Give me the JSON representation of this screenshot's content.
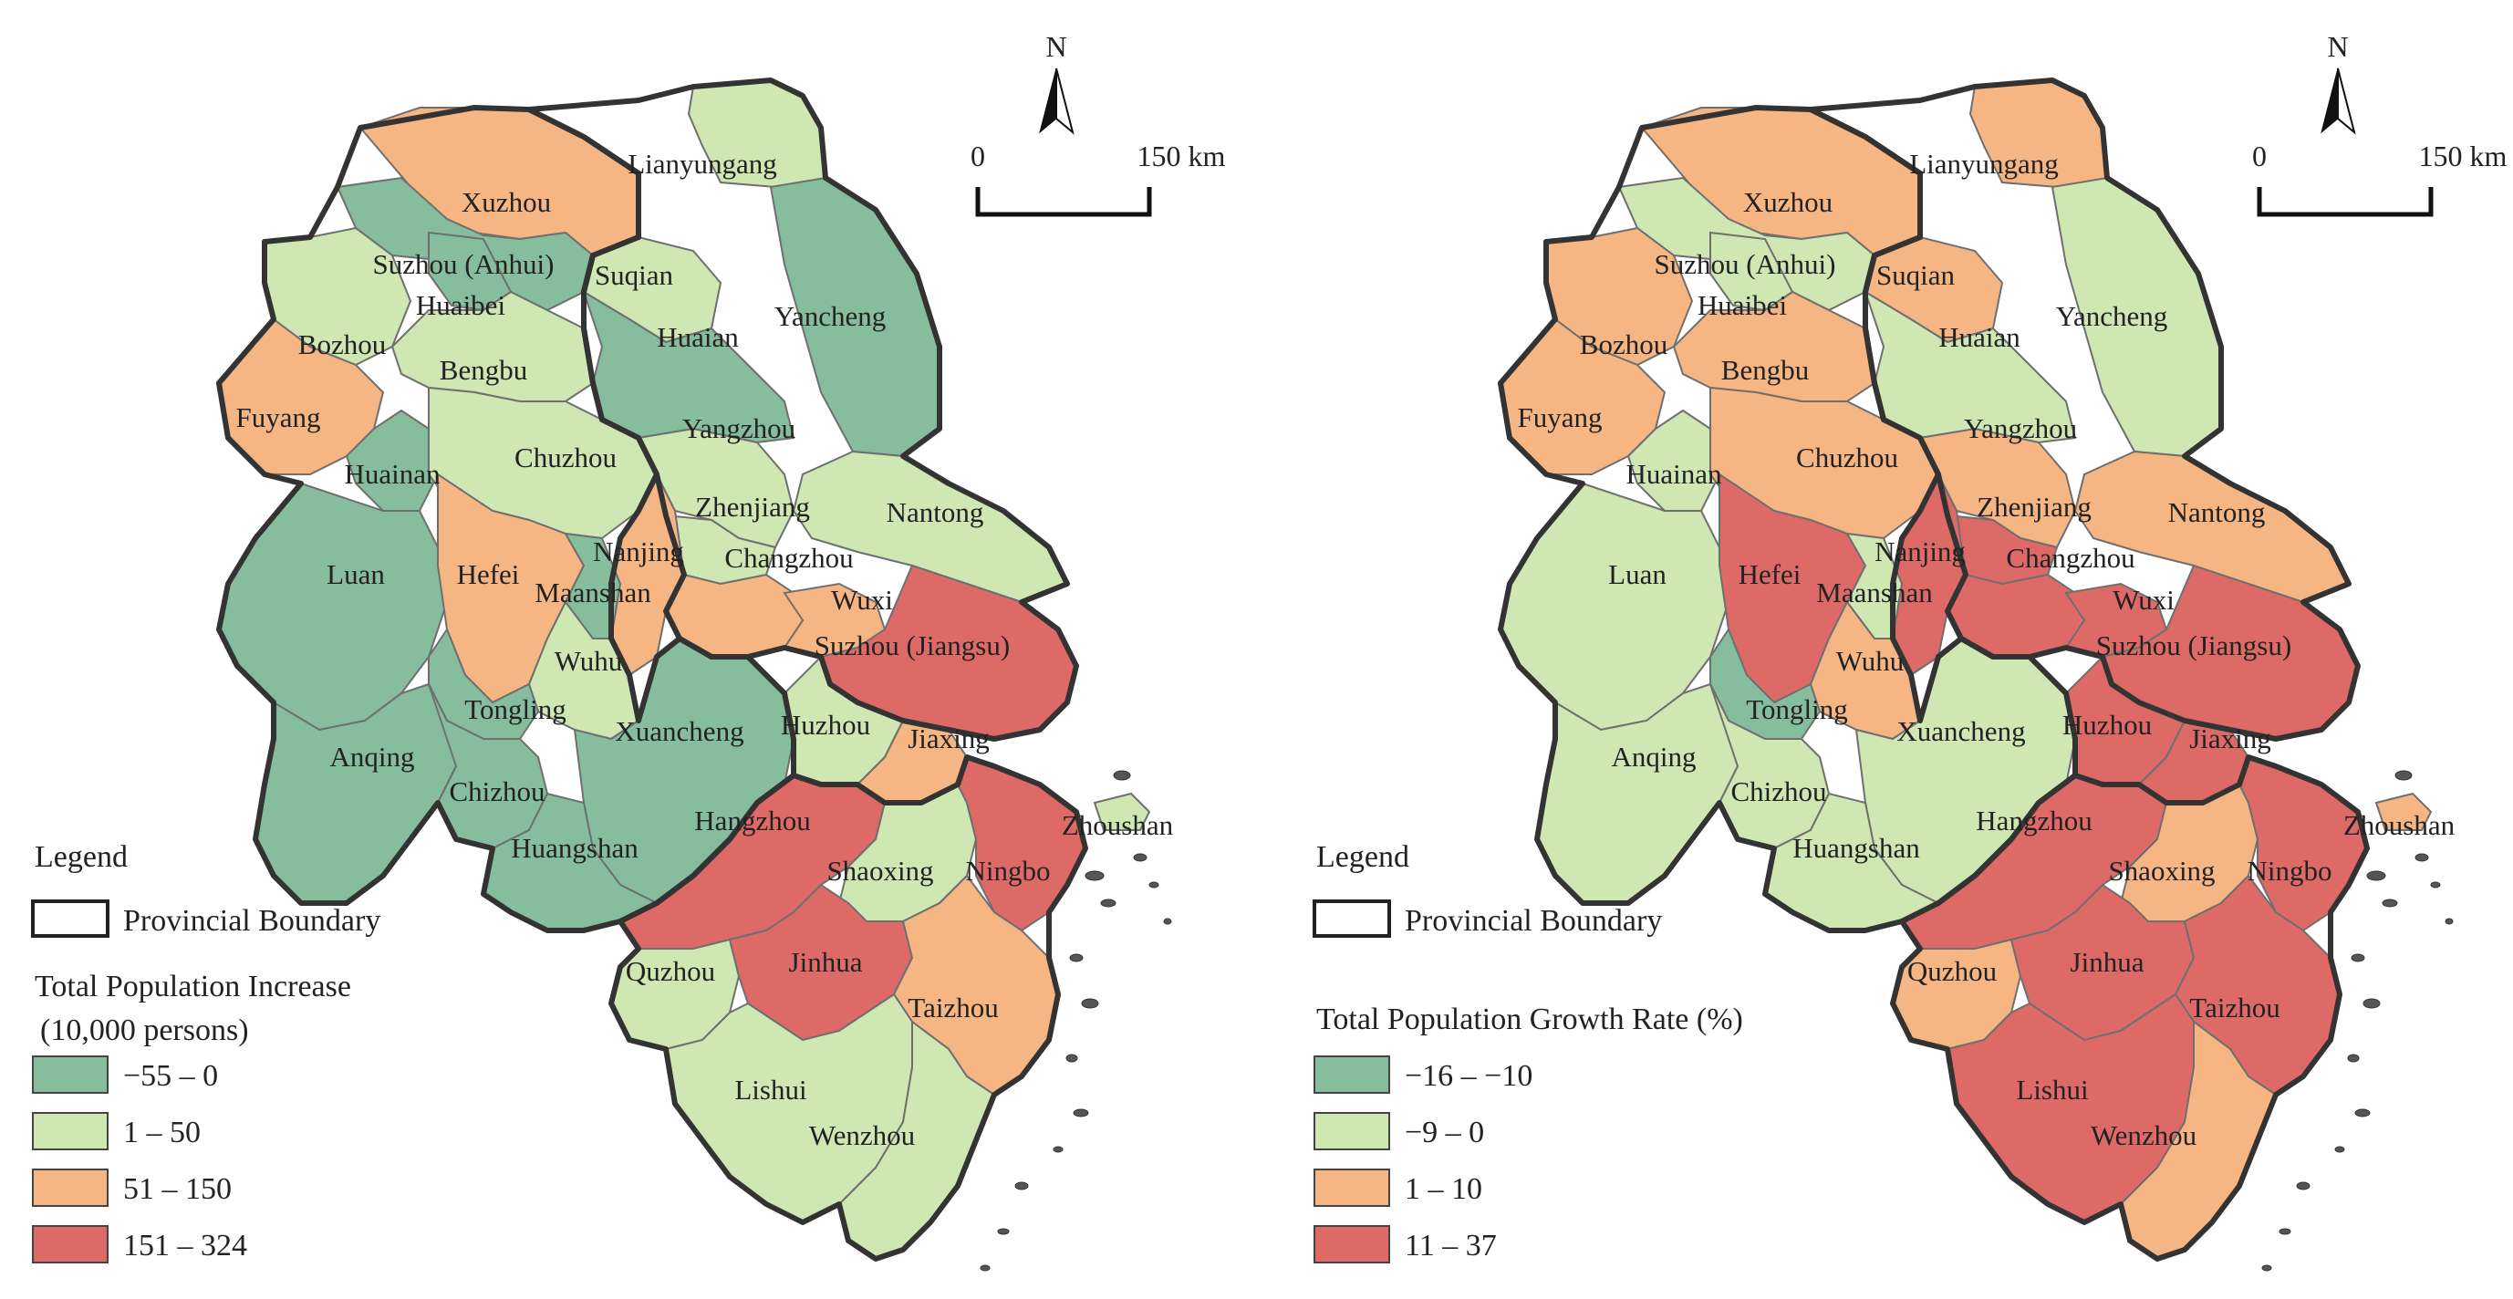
{
  "colors": {
    "class1": "#86bd9d",
    "class2": "#cfe7b3",
    "class3": "#f6b683",
    "class4": "#dd6a67"
  },
  "north_arrow": {
    "label": "N"
  },
  "maps": [
    {
      "id": "left",
      "legend": {
        "heading": "Legend",
        "boundary_label": "Provincial Boundary",
        "title_line1": "Total Population Increase",
        "title_line2": "(10,000 persons)",
        "classes": [
          "−55 – 0",
          "1 – 50",
          "51 – 150",
          "151 – 324"
        ]
      },
      "scale": {
        "zero": "0",
        "end": "150 km"
      }
    },
    {
      "id": "right",
      "legend": {
        "heading": "Legend",
        "boundary_label": "Provincial Boundary",
        "title_line1": "Total Population Growth Rate (%)",
        "title_line2": "",
        "classes": [
          "−16 – −10",
          "−9 – 0",
          "1 – 10",
          "11 – 37"
        ]
      },
      "scale": {
        "zero": "0",
        "end": "150 km"
      }
    }
  ],
  "cities": [
    {
      "name": "Lianyungang",
      "left_class": 2,
      "right_class": 3
    },
    {
      "name": "Xuzhou",
      "left_class": 3,
      "right_class": 3
    },
    {
      "name": "Suzhou (Anhui)",
      "left_class": 1,
      "right_class": 2
    },
    {
      "name": "Huaibei",
      "left_class": 1,
      "right_class": 2
    },
    {
      "name": "Suqian",
      "left_class": 2,
      "right_class": 3
    },
    {
      "name": "Yancheng",
      "left_class": 1,
      "right_class": 2
    },
    {
      "name": "Huaian",
      "left_class": 1,
      "right_class": 2
    },
    {
      "name": "Bozhou",
      "left_class": 2,
      "right_class": 3
    },
    {
      "name": "Bengbu",
      "left_class": 2,
      "right_class": 3
    },
    {
      "name": "Fuyang",
      "left_class": 3,
      "right_class": 3
    },
    {
      "name": "Huainan",
      "left_class": 1,
      "right_class": 2
    },
    {
      "name": "Chuzhou",
      "left_class": 2,
      "right_class": 3
    },
    {
      "name": "Yangzhou",
      "left_class": 2,
      "right_class": 3
    },
    {
      "name": "Zhenjiang",
      "left_class": 2,
      "right_class": 4
    },
    {
      "name": "Nantong",
      "left_class": 2,
      "right_class": 3
    },
    {
      "name": "Luan",
      "left_class": 1,
      "right_class": 2
    },
    {
      "name": "Hefei",
      "left_class": 3,
      "right_class": 4
    },
    {
      "name": "Nanjing",
      "left_class": 3,
      "right_class": 4
    },
    {
      "name": "Changzhou",
      "left_class": 3,
      "right_class": 4
    },
    {
      "name": "Maanshan",
      "left_class": 1,
      "right_class": 2
    },
    {
      "name": "Wuxi",
      "left_class": 3,
      "right_class": 4
    },
    {
      "name": "Suzhou (Jiangsu)",
      "left_class": 4,
      "right_class": 4
    },
    {
      "name": "Wuhu",
      "left_class": 2,
      "right_class": 3
    },
    {
      "name": "Tongling",
      "left_class": 1,
      "right_class": 1
    },
    {
      "name": "Xuancheng",
      "left_class": 1,
      "right_class": 2
    },
    {
      "name": "Huzhou",
      "left_class": 2,
      "right_class": 4
    },
    {
      "name": "Jiaxing",
      "left_class": 3,
      "right_class": 4
    },
    {
      "name": "Anqing",
      "left_class": 1,
      "right_class": 2
    },
    {
      "name": "Chizhou",
      "left_class": 1,
      "right_class": 2
    },
    {
      "name": "Zhoushan",
      "left_class": 2,
      "right_class": 3
    },
    {
      "name": "Hangzhou",
      "left_class": 4,
      "right_class": 4
    },
    {
      "name": "Huangshan",
      "left_class": 1,
      "right_class": 2
    },
    {
      "name": "Shaoxing",
      "left_class": 2,
      "right_class": 3
    },
    {
      "name": "Ningbo",
      "left_class": 4,
      "right_class": 4
    },
    {
      "name": "Quzhou",
      "left_class": 2,
      "right_class": 3
    },
    {
      "name": "Jinhua",
      "left_class": 4,
      "right_class": 4
    },
    {
      "name": "Taizhou",
      "left_class": 3,
      "right_class": 4
    },
    {
      "name": "Lishui",
      "left_class": 2,
      "right_class": 4
    },
    {
      "name": "Wenzhou",
      "left_class": 2,
      "right_class": 3
    }
  ]
}
